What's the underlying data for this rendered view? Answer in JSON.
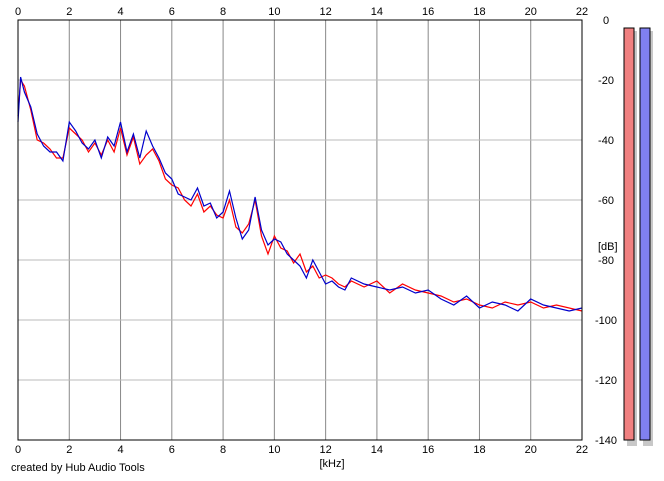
{
  "chart_data": {
    "type": "area",
    "xlabel": "[kHz]",
    "ylabel": "[dB]",
    "xlim": [
      0,
      22
    ],
    "ylim": [
      -140,
      0
    ],
    "x_ticks": [
      "0",
      "2",
      "4",
      "6",
      "8",
      "10",
      "12",
      "14",
      "16",
      "18",
      "20",
      "22"
    ],
    "y_ticks": [
      "0",
      "-20",
      "-40",
      "-60",
      "-80",
      "-100",
      "-120",
      "-140"
    ],
    "grid": true,
    "series": [
      {
        "color": "#ff0000",
        "x": [
          0,
          0.1,
          0.25,
          0.5,
          0.75,
          1,
          1.25,
          1.5,
          1.75,
          2,
          2.25,
          2.5,
          2.75,
          3,
          3.25,
          3.5,
          3.75,
          4,
          4.25,
          4.5,
          4.75,
          5,
          5.25,
          5.5,
          5.75,
          6,
          6.25,
          6.5,
          6.75,
          7,
          7.25,
          7.5,
          7.75,
          8,
          8.25,
          8.5,
          8.75,
          9,
          9.25,
          9.5,
          9.75,
          10,
          10.25,
          10.5,
          10.75,
          11,
          11.25,
          11.5,
          11.75,
          12,
          12.25,
          12.5,
          12.75,
          13,
          13.5,
          14,
          14.5,
          15,
          15.5,
          16,
          16.5,
          17,
          17.5,
          18,
          18.5,
          19,
          19.5,
          20,
          20.5,
          21,
          21.5,
          22
        ],
        "values": [
          -32,
          -20,
          -22,
          -30,
          -40,
          -41,
          -43,
          -46,
          -46,
          -36,
          -38,
          -40,
          -44,
          -41,
          -45,
          -40,
          -44,
          -36,
          -45,
          -39,
          -48,
          -45,
          -43,
          -47,
          -53,
          -55,
          -56,
          -60,
          -62,
          -58,
          -64,
          -62,
          -65,
          -66,
          -60,
          -69,
          -71,
          -68,
          -60,
          -72,
          -78,
          -72,
          -76,
          -77,
          -81,
          -78,
          -84,
          -82,
          -86,
          -85,
          -86,
          -88,
          -89,
          -87,
          -89,
          -87,
          -91,
          -88,
          -90,
          -91,
          -92,
          -94,
          -93,
          -95,
          -96,
          -94,
          -95,
          -94,
          -96,
          -95,
          -96,
          -97
        ]
      },
      {
        "color": "#0000cc",
        "x": [
          0,
          0.1,
          0.25,
          0.5,
          0.75,
          1,
          1.25,
          1.5,
          1.75,
          2,
          2.25,
          2.5,
          2.75,
          3,
          3.25,
          3.5,
          3.75,
          4,
          4.25,
          4.5,
          4.75,
          5,
          5.25,
          5.5,
          5.75,
          6,
          6.25,
          6.5,
          6.75,
          7,
          7.25,
          7.5,
          7.75,
          8,
          8.25,
          8.5,
          8.75,
          9,
          9.25,
          9.5,
          9.75,
          10,
          10.25,
          10.5,
          10.75,
          11,
          11.25,
          11.5,
          11.75,
          12,
          12.25,
          12.5,
          12.75,
          13,
          13.5,
          14,
          14.5,
          15,
          15.5,
          16,
          16.5,
          17,
          17.5,
          18,
          18.5,
          19,
          19.5,
          20,
          20.5,
          21,
          21.5,
          22
        ],
        "values": [
          -34,
          -19,
          -24,
          -29,
          -38,
          -42,
          -44,
          -44,
          -47,
          -34,
          -37,
          -41,
          -43,
          -40,
          -46,
          -39,
          -42,
          -34,
          -44,
          -38,
          -46,
          -37,
          -42,
          -46,
          -51,
          -53,
          -58,
          -59,
          -60,
          -56,
          -62,
          -61,
          -66,
          -64,
          -57,
          -66,
          -73,
          -70,
          -59,
          -70,
          -75,
          -73,
          -74,
          -78,
          -80,
          -82,
          -86,
          -80,
          -84,
          -88,
          -87,
          -89,
          -90,
          -86,
          -88,
          -89,
          -90,
          -89,
          -91,
          -90,
          -93,
          -95,
          -92,
          -96,
          -94,
          -95,
          -97,
          -93,
          -95,
          -96,
          -97,
          -96
        ]
      }
    ],
    "level_meters": [
      {
        "color": "#f08080",
        "level_db": -140
      },
      {
        "color": "#8080f0",
        "level_db": -140
      }
    ]
  },
  "credit": "created by Hub Audio Tools"
}
